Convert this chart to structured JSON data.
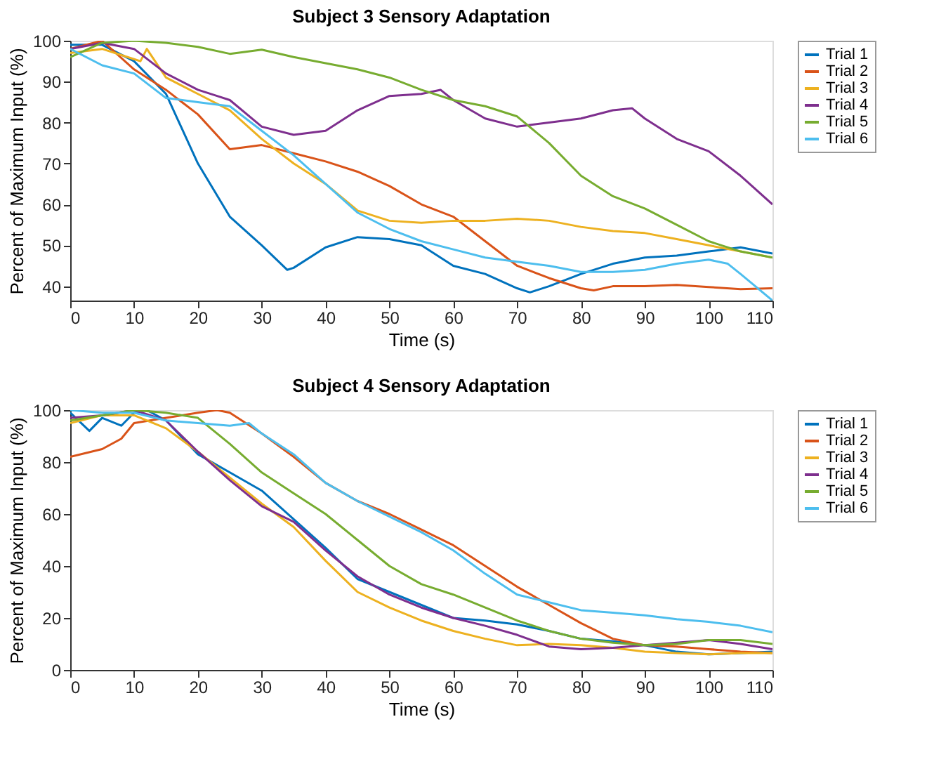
{
  "chart_data": [
    {
      "type": "line",
      "title": "Subject 3 Sensory Adaptation",
      "xlabel": "Time (s)",
      "ylabel": "Percent of Maximum Input (%)",
      "xlim": [
        0,
        110
      ],
      "xticks": [
        0,
        10,
        20,
        30,
        40,
        50,
        60,
        70,
        80,
        90,
        100,
        110
      ],
      "ylim": [
        36.5,
        100
      ],
      "yticks": [
        40,
        50,
        60,
        70,
        80,
        90,
        100
      ],
      "grid": false,
      "legend": "right",
      "line_style": "solid",
      "marker": "none",
      "series": [
        {
          "name": "Trial 1",
          "color": "#0072bd",
          "x": [
            0,
            5,
            10,
            15,
            20,
            25,
            30,
            34,
            35,
            40,
            45,
            50,
            55,
            60,
            65,
            70,
            72,
            75,
            80,
            85,
            90,
            95,
            100,
            105,
            110
          ],
          "values": [
            99,
            99,
            95,
            87,
            70,
            57,
            50,
            44,
            44.5,
            49.5,
            52,
            51.5,
            50,
            45,
            43,
            39.5,
            38.5,
            40,
            43,
            45.5,
            47,
            47.5,
            48.5,
            49.5,
            48
          ]
        },
        {
          "name": "Trial 2",
          "color": "#d95319",
          "x": [
            0,
            5,
            10,
            15,
            20,
            25,
            30,
            35,
            40,
            45,
            50,
            55,
            60,
            65,
            70,
            75,
            80,
            82,
            85,
            90,
            95,
            100,
            105,
            110
          ],
          "values": [
            98,
            100,
            93,
            88,
            82,
            73.5,
            74.5,
            72.5,
            70.5,
            68,
            64.5,
            60,
            57,
            51,
            45,
            42,
            39.5,
            39,
            40,
            40,
            40.3,
            39.8,
            39.3,
            39.5
          ]
        },
        {
          "name": "Trial 3",
          "color": "#edb120",
          "x": [
            0,
            5,
            10,
            11,
            12,
            15,
            20,
            25,
            30,
            35,
            40,
            45,
            50,
            55,
            60,
            65,
            70,
            75,
            80,
            85,
            90,
            95,
            100,
            105,
            110
          ],
          "values": [
            97,
            98,
            95.5,
            95,
            98,
            91,
            87,
            83,
            76,
            70,
            65,
            58.5,
            56,
            55.5,
            56,
            56,
            56.5,
            56,
            54.5,
            53.5,
            53,
            51.5,
            50,
            48.5,
            47
          ]
        },
        {
          "name": "Trial 4",
          "color": "#7e2f8e",
          "x": [
            0,
            5,
            10,
            15,
            20,
            23,
            25,
            30,
            35,
            40,
            45,
            50,
            55,
            58,
            60,
            65,
            70,
            75,
            80,
            85,
            88,
            90,
            95,
            100,
            105,
            110
          ],
          "values": [
            98,
            99.5,
            98,
            92,
            88,
            86.5,
            85.5,
            79,
            77,
            78,
            83,
            86.5,
            87,
            88,
            85.5,
            81,
            79,
            80,
            81,
            83,
            83.5,
            81,
            76,
            73,
            67,
            60
          ]
        },
        {
          "name": "Trial 5",
          "color": "#77ac30",
          "x": [
            0,
            5,
            10,
            15,
            20,
            25,
            30,
            35,
            40,
            45,
            50,
            55,
            60,
            65,
            70,
            75,
            80,
            85,
            90,
            95,
            100,
            105,
            110
          ],
          "values": [
            96,
            99.5,
            100,
            99.5,
            98.5,
            96.8,
            97.8,
            96,
            94.5,
            93,
            91,
            88,
            85.5,
            84,
            81.5,
            75,
            67,
            62,
            59,
            55,
            51,
            48.5,
            47
          ]
        },
        {
          "name": "Trial 6",
          "color": "#4dbeee",
          "x": [
            0,
            5,
            10,
            15,
            20,
            25,
            30,
            35,
            40,
            45,
            50,
            55,
            60,
            65,
            70,
            75,
            80,
            85,
            90,
            95,
            100,
            103,
            105,
            110
          ],
          "values": [
            98,
            94,
            92,
            86,
            85,
            84,
            78,
            72,
            65,
            58,
            54,
            51,
            49,
            47,
            46,
            45,
            43.5,
            43.5,
            44,
            45.5,
            46.5,
            45.5,
            43,
            36.5
          ]
        }
      ]
    },
    {
      "type": "line",
      "title": "Subject 4 Sensory Adaptation",
      "xlabel": "Time (s)",
      "ylabel": "Percent of Maximum Input (%)",
      "xlim": [
        0,
        110
      ],
      "xticks": [
        0,
        10,
        20,
        30,
        40,
        50,
        60,
        70,
        80,
        90,
        100,
        110
      ],
      "ylim": [
        0,
        100
      ],
      "yticks": [
        0,
        20,
        40,
        60,
        80,
        100
      ],
      "grid": false,
      "legend": "right",
      "line_style": "solid",
      "marker": "none",
      "series": [
        {
          "name": "Trial 1",
          "color": "#0072bd",
          "x": [
            0,
            3,
            5,
            8,
            10,
            12,
            15,
            20,
            25,
            30,
            35,
            40,
            45,
            50,
            55,
            60,
            65,
            70,
            75,
            80,
            85,
            90,
            95,
            100,
            105,
            110
          ],
          "values": [
            99,
            92,
            97,
            94,
            99,
            100,
            96,
            83,
            76,
            69,
            58,
            47,
            35,
            30,
            25,
            20,
            19,
            17.5,
            15,
            12,
            11,
            9.5,
            7,
            6,
            6.5,
            7
          ]
        },
        {
          "name": "Trial 2",
          "color": "#d95319",
          "x": [
            0,
            5,
            8,
            10,
            15,
            20,
            23,
            25,
            30,
            35,
            40,
            45,
            50,
            55,
            60,
            65,
            70,
            75,
            80,
            85,
            90,
            95,
            100,
            105,
            110
          ],
          "values": [
            82,
            85,
            89,
            95,
            97,
            99,
            100,
            99,
            91,
            82,
            72,
            65,
            60,
            54,
            48,
            40,
            32,
            25,
            18,
            12,
            9.5,
            9,
            8,
            7,
            6.5
          ]
        },
        {
          "name": "Trial 3",
          "color": "#edb120",
          "x": [
            0,
            5,
            10,
            15,
            20,
            25,
            30,
            35,
            40,
            45,
            50,
            55,
            60,
            65,
            70,
            75,
            80,
            85,
            90,
            95,
            100,
            105,
            110
          ],
          "values": [
            95,
            98,
            98,
            93,
            84,
            74,
            64,
            55,
            42,
            30,
            24,
            19,
            15,
            12,
            9.5,
            10,
            9.5,
            8.5,
            7,
            6.5,
            6,
            6.5,
            6.5
          ]
        },
        {
          "name": "Trial 4",
          "color": "#7e2f8e",
          "x": [
            0,
            5,
            10,
            15,
            20,
            25,
            30,
            35,
            40,
            45,
            50,
            55,
            60,
            65,
            70,
            75,
            80,
            85,
            90,
            95,
            100,
            105,
            110
          ],
          "values": [
            97,
            98,
            100,
            96,
            84,
            73,
            63,
            57,
            46,
            36,
            29,
            24,
            20,
            17,
            13.5,
            9,
            8,
            8.5,
            9.5,
            10.5,
            11.5,
            10,
            8
          ]
        },
        {
          "name": "Trial 5",
          "color": "#77ac30",
          "x": [
            0,
            5,
            10,
            15,
            20,
            25,
            30,
            35,
            40,
            45,
            50,
            55,
            60,
            65,
            70,
            75,
            80,
            85,
            90,
            95,
            100,
            105,
            110
          ],
          "values": [
            96,
            98,
            100,
            99,
            97,
            87,
            76,
            68,
            60,
            50,
            40,
            33,
            29,
            24,
            19,
            15,
            12,
            10.5,
            9.5,
            10,
            11.5,
            11.5,
            10
          ]
        },
        {
          "name": "Trial 6",
          "color": "#4dbeee",
          "x": [
            0,
            5,
            10,
            15,
            20,
            25,
            28,
            30,
            35,
            40,
            45,
            50,
            55,
            60,
            65,
            70,
            75,
            80,
            85,
            90,
            95,
            100,
            105,
            110
          ],
          "values": [
            100,
            99,
            99,
            96,
            95,
            94,
            95,
            91,
            83,
            72,
            65,
            59,
            53,
            46,
            37,
            29,
            26,
            23,
            22,
            21,
            19.5,
            18.5,
            17,
            14.5
          ]
        }
      ]
    }
  ]
}
